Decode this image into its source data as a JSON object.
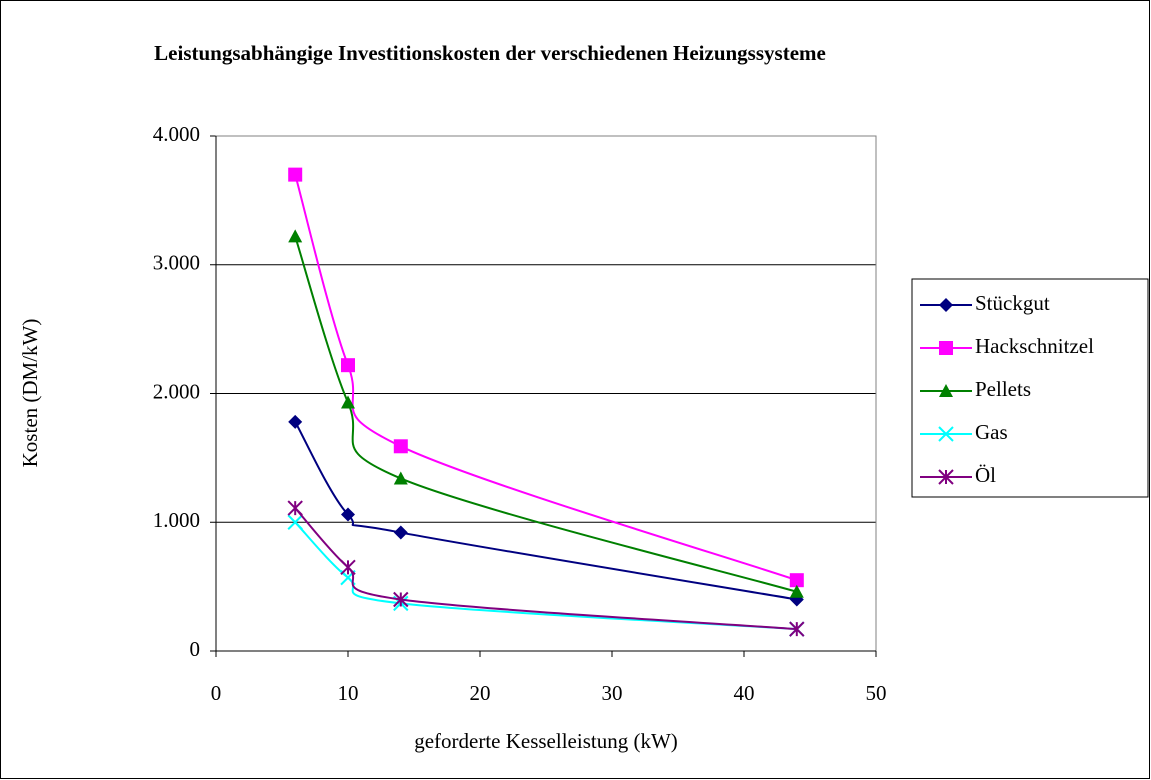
{
  "chart_data": {
    "type": "line",
    "title": "Leistungsabhängige Investitionskosten der verschiedenen Heizungssysteme",
    "x_label": "geforderte Kesselleistung (kW)",
    "y_label": "Kosten (DM/kW)",
    "x": [
      6,
      10,
      14,
      44
    ],
    "xlim": [
      0,
      50
    ],
    "xticks": [
      0,
      10,
      20,
      30,
      40,
      50
    ],
    "ylim": [
      0,
      4000
    ],
    "yticks": [
      0,
      {
        "value": 1000,
        "label": "1.000"
      },
      {
        "value": 2000,
        "label": "2.000"
      },
      {
        "value": 3000,
        "label": "3.000"
      },
      {
        "value": 4000,
        "label": "4.000"
      }
    ],
    "grid": true,
    "smooth": true,
    "legend": "right",
    "series": [
      {
        "name": "Stückgut",
        "color": "#000080",
        "marker": "diamond",
        "values": [
          1780,
          1060,
          920,
          400
        ]
      },
      {
        "name": "Hackschnitzel",
        "color": "#ff00ff",
        "marker": "square",
        "values": [
          3700,
          2220,
          1590,
          550
        ]
      },
      {
        "name": "Pellets",
        "color": "#008000",
        "marker": "triangle",
        "values": [
          3220,
          1930,
          1340,
          460
        ]
      },
      {
        "name": "Gas",
        "color": "#00ffff",
        "marker": "x",
        "values": [
          1000,
          570,
          370,
          170
        ]
      },
      {
        "name": "Öl",
        "color": "#800080",
        "marker": "star",
        "values": [
          1110,
          650,
          400,
          170
        ]
      }
    ]
  }
}
